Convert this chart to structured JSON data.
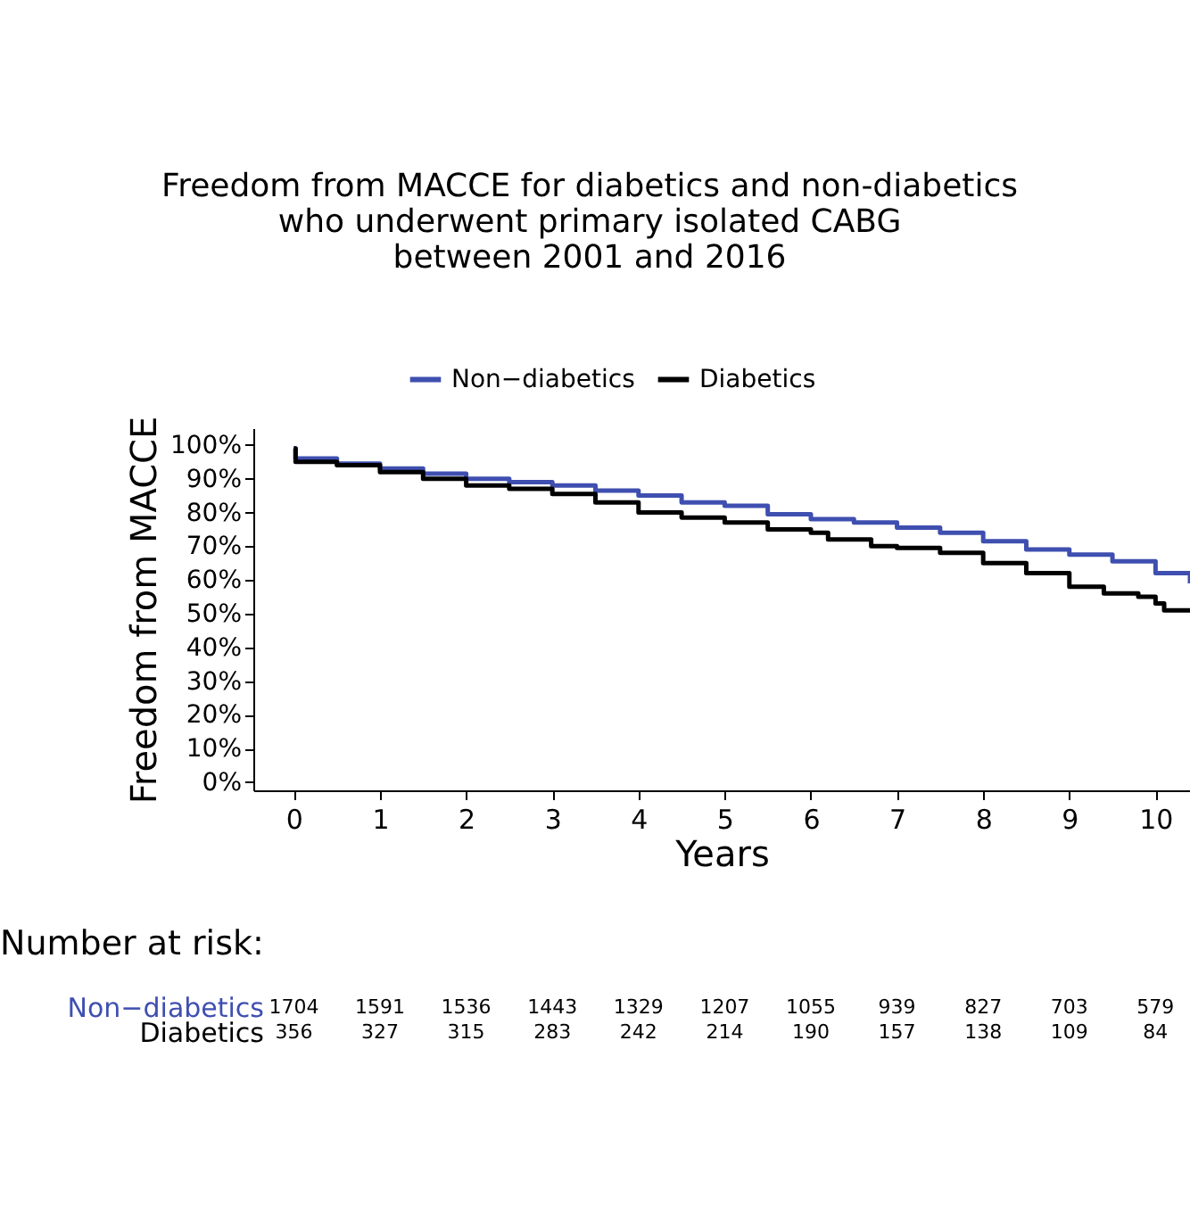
{
  "chart_data": {
    "type": "step",
    "title": [
      "Freedom from MACCE for diabetics and non-diabetics",
      "who underwent primary isolated CABG",
      "between 2001 and 2016"
    ],
    "xlabel": "Years",
    "ylabel": "Freedom from MACCE",
    "series": [
      {
        "name": "Non−diabetics",
        "color": "#3f4fb0",
        "x": [
          0,
          0.02,
          0.5,
          1,
          1.5,
          2,
          2.5,
          3,
          3.5,
          4,
          4.5,
          5,
          5.5,
          6,
          6.5,
          7,
          7.5,
          8,
          8.5,
          9,
          9.5,
          10,
          10.4
        ],
        "values": [
          99,
          96,
          94.5,
          93,
          91.5,
          90,
          89,
          88,
          86.5,
          85,
          83,
          82,
          79.5,
          78,
          77,
          75.5,
          74,
          71.5,
          69,
          67.5,
          65.5,
          62,
          59
        ]
      },
      {
        "name": "Diabetics",
        "color": "#000000",
        "x": [
          0,
          0.02,
          0.5,
          1,
          1.5,
          2,
          2.5,
          3,
          3.5,
          4,
          4.5,
          5,
          5.5,
          6,
          6.2,
          6.7,
          7,
          7.5,
          8,
          8.5,
          9,
          9.4,
          9.8,
          10,
          10.1,
          10.4
        ],
        "values": [
          99,
          95,
          94,
          92,
          90,
          88,
          87,
          85.5,
          83,
          80,
          78.5,
          77,
          75,
          74,
          72,
          70,
          69.5,
          68,
          65,
          62,
          58,
          56,
          55,
          53,
          51,
          51
        ]
      }
    ],
    "xlim": [
      -0.47,
      10.4
    ],
    "xticks": [
      0,
      1,
      2,
      3,
      4,
      5,
      6,
      7,
      8,
      9,
      10
    ],
    "ylim": [
      -2.4,
      105
    ],
    "yticks": [
      {
        "value": 0,
        "label": "0%"
      },
      {
        "value": 10,
        "label": "10%"
      },
      {
        "value": 20,
        "label": "20%"
      },
      {
        "value": 30,
        "label": "30%"
      },
      {
        "value": 40,
        "label": "40%"
      },
      {
        "value": 50,
        "label": "50%"
      },
      {
        "value": 60,
        "label": "60%"
      },
      {
        "value": 70,
        "label": "70%"
      },
      {
        "value": 80,
        "label": "80%"
      },
      {
        "value": 90,
        "label": "90%"
      },
      {
        "value": 100,
        "label": "100%"
      }
    ],
    "grid": false,
    "legend": "top",
    "line_style": "solid",
    "marker": "none",
    "annotations": [
      "Number at risk:",
      "Non−diabetics 1704 1591 1536 1443 1329 1207 1055 939 827 703 579",
      "Diabetics 356 327 315 283 242 214 190 157 138 109 84"
    ]
  }
}
